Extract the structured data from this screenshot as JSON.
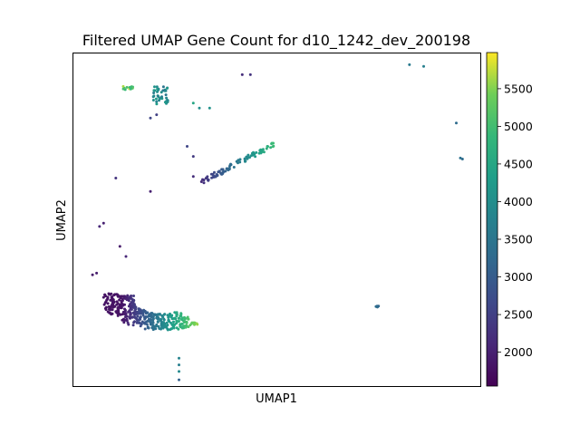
{
  "chart_data": {
    "type": "scatter",
    "title": "Filtered UMAP Gene Count for d10_1242_dev_200198",
    "xlabel": "UMAP1",
    "ylabel": "UMAP2",
    "xlim": [
      0,
      10
    ],
    "ylim": [
      0,
      10
    ],
    "x_ticks_shown": false,
    "y_ticks_shown": false,
    "colormap": "viridis",
    "colorbar": {
      "range": [
        1550,
        5980
      ],
      "ticks": [
        2000,
        2500,
        3000,
        3500,
        4000,
        4500,
        5000,
        5500
      ],
      "tick_labels": [
        "2000",
        "2500",
        "3000",
        "3500",
        "4000",
        "4500",
        "5000",
        "5500"
      ]
    },
    "clusters": [
      {
        "center": [
          2.2,
          2.3
        ],
        "spread": [
          1.0,
          0.45
        ],
        "count": 420,
        "value_low": 1800,
        "value_high": 5900,
        "shape": "crescent"
      },
      {
        "center": [
          2.15,
          8.75
        ],
        "spread": [
          0.18,
          0.28
        ],
        "count": 40,
        "value_low": 3500,
        "value_high": 4300,
        "shape": "blob"
      },
      {
        "center": [
          1.35,
          8.95
        ],
        "spread": [
          0.12,
          0.05
        ],
        "count": 14,
        "value_low": 4800,
        "value_high": 5800,
        "shape": "blob"
      },
      {
        "center": [
          4.05,
          6.7
        ],
        "spread": [
          0.9,
          0.3
        ],
        "count": 90,
        "value_low": 2200,
        "value_high": 5000,
        "shape": "streak"
      },
      {
        "center": [
          7.45,
          2.4
        ],
        "spread": [
          0.05,
          0.02
        ],
        "count": 6,
        "value_low": 3100,
        "value_high": 3400,
        "shape": "blob"
      }
    ],
    "points": [
      {
        "x": 0.48,
        "y": 3.35,
        "v": 1900
      },
      {
        "x": 0.58,
        "y": 3.4,
        "v": 1950
      },
      {
        "x": 0.65,
        "y": 4.8,
        "v": 2100
      },
      {
        "x": 0.75,
        "y": 4.9,
        "v": 2000
      },
      {
        "x": 1.15,
        "y": 4.2,
        "v": 1900
      },
      {
        "x": 1.3,
        "y": 3.9,
        "v": 2100
      },
      {
        "x": 1.05,
        "y": 6.25,
        "v": 2300
      },
      {
        "x": 1.9,
        "y": 5.85,
        "v": 2000
      },
      {
        "x": 2.6,
        "y": 0.85,
        "v": 3800
      },
      {
        "x": 2.6,
        "y": 0.65,
        "v": 3700
      },
      {
        "x": 2.6,
        "y": 0.45,
        "v": 3900
      },
      {
        "x": 2.6,
        "y": 0.2,
        "v": 3100
      },
      {
        "x": 2.8,
        "y": 7.2,
        "v": 2600
      },
      {
        "x": 2.95,
        "y": 6.9,
        "v": 2400
      },
      {
        "x": 2.95,
        "y": 6.3,
        "v": 2200
      },
      {
        "x": 2.05,
        "y": 8.15,
        "v": 2500
      },
      {
        "x": 1.9,
        "y": 8.05,
        "v": 2600
      },
      {
        "x": 2.95,
        "y": 8.5,
        "v": 4500
      },
      {
        "x": 3.1,
        "y": 8.35,
        "v": 4000
      },
      {
        "x": 3.35,
        "y": 8.35,
        "v": 4100
      },
      {
        "x": 4.15,
        "y": 9.35,
        "v": 2200
      },
      {
        "x": 4.35,
        "y": 9.35,
        "v": 2300
      },
      {
        "x": 8.25,
        "y": 9.65,
        "v": 3600
      },
      {
        "x": 8.6,
        "y": 9.6,
        "v": 3700
      },
      {
        "x": 9.4,
        "y": 7.9,
        "v": 3300
      },
      {
        "x": 9.5,
        "y": 6.85,
        "v": 3400
      },
      {
        "x": 9.55,
        "y": 6.82,
        "v": 3300
      }
    ]
  }
}
